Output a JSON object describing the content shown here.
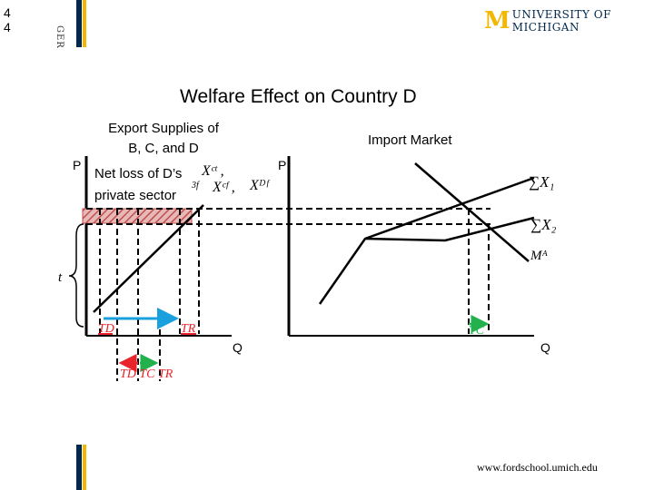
{
  "page_number": [
    "4",
    "4"
  ],
  "side_label": "GER",
  "logo": {
    "m": "M",
    "text": "UNIVERSITY OF MICHIGAN"
  },
  "title": "Welfare Effect on Country D",
  "left_panel": {
    "header_lines": [
      "Export Supplies of",
      "B, C, and D"
    ],
    "p_axis": "P",
    "q_axis": "Q",
    "loss_lines": [
      "Net loss of D’s",
      "private sector"
    ],
    "tariff": "t",
    "curve_labels": {
      "top": "Xᶜᵗ ,",
      "mid": "Xᶜᶠ ,",
      "right": "Xᴰᶠ",
      "small": "3f"
    },
    "arrow_labels": {
      "td": "TD",
      "tr": "TR",
      "bottom": "TD TC TR"
    }
  },
  "right_panel": {
    "header": "Import Market",
    "p_axis": "P",
    "q_axis": "Q",
    "curve_labels": {
      "sum1": "∑X₁",
      "sum2": "∑X₂",
      "ma": "Mᴬ"
    },
    "arrow_label": "TC"
  },
  "footer": "www.fordschool.umich.edu",
  "colors": {
    "gold": "#f2b700",
    "navy": "#00274c",
    "blue_arrow": "#1aa0dc",
    "green_arrow": "#22b14c",
    "red_arrow": "#e8232a",
    "hatch": "#c0504d"
  }
}
